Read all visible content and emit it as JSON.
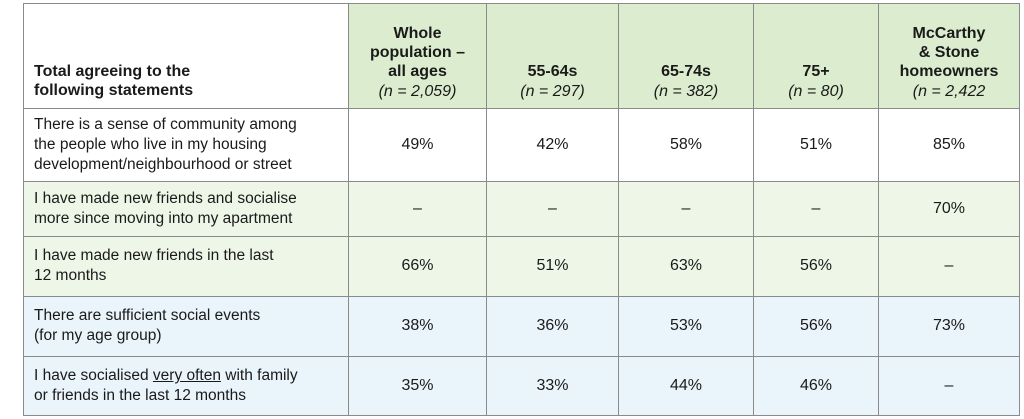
{
  "table": {
    "stub_header": "Total agreeing to the\nfollowing statements",
    "columns": [
      {
        "title": "Whole\npopulation –\nall ages",
        "n": "(n = 2,059)"
      },
      {
        "title": "55-64s",
        "n": "(n = 297)"
      },
      {
        "title": "65-74s",
        "n": "(n = 382)"
      },
      {
        "title": "75+",
        "n": "(n = 80)"
      },
      {
        "title": "McCarthy\n& Stone\nhomeowners",
        "n": "(n = 2,422"
      }
    ],
    "rows": [
      {
        "statement": "There is a sense of community among\nthe people who live in my housing\ndevelopment/neighbourhood or street",
        "values": [
          "49%",
          "42%",
          "58%",
          "51%",
          "85%"
        ],
        "shade": "white"
      },
      {
        "statement": "I have made new friends and socialise\nmore since moving into my apartment",
        "values": [
          "–",
          "–",
          "–",
          "–",
          "70%"
        ],
        "shade": "green"
      },
      {
        "statement": "I have made new friends in the last\n12 months",
        "values": [
          "66%",
          "51%",
          "63%",
          "56%",
          "–"
        ],
        "shade": "green"
      },
      {
        "statement": "There are sufficient social events\n(for my age group)",
        "values": [
          "38%",
          "36%",
          "53%",
          "56%",
          "73%"
        ],
        "shade": "blue"
      },
      {
        "statement_parts": {
          "before": "I have socialised ",
          "underlined": "very often",
          "after": " with family\nor friends in the last 12 months"
        },
        "values": [
          "35%",
          "33%",
          "44%",
          "46%",
          "–"
        ],
        "shade": "blue"
      }
    ]
  },
  "colors": {
    "header_green": "#dcedcf",
    "row_green": "#eef6e8",
    "row_blue": "#eaf4fb",
    "border": "#8a8a8a"
  }
}
